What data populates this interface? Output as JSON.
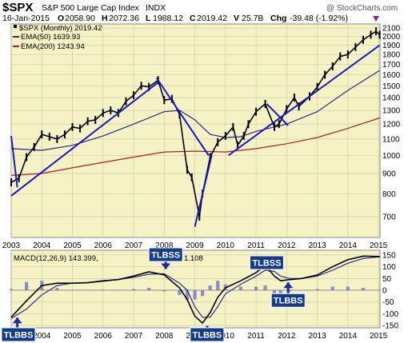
{
  "header": {
    "symbol": "$SPX",
    "name": "S&P 500 Large Cap Index",
    "exchange": "INDX",
    "source": "@ StockCharts.com",
    "date": "16-Jan-2015",
    "open_label": "O",
    "open": "2058.90",
    "high_label": "H",
    "high": "2072.36",
    "low_label": "L",
    "low": "1988.12",
    "close_label": "C",
    "close": "2019.42",
    "volume_label": "V",
    "volume": "25.7B",
    "chg_label": "Chg",
    "chg": "-39.48 (-1.92%)"
  },
  "legend": {
    "price": "$SPX (Monthly) 2019.42",
    "ema50": "EMA(50) 1639.93",
    "ema200": "EMA(200) 1243.94",
    "macd": "MACD(12,26,9) 143.399,",
    "macd_rest": "1.108"
  },
  "callouts": [
    "TLBSS",
    "TLBSS",
    "TLBBS",
    "TLBBS",
    "TLBBS"
  ],
  "colors": {
    "panel_bg": "#f5f2c4",
    "grid": "#c8c8a8",
    "price": "#000000",
    "ema50": "#2a2a8c",
    "ema200": "#b42020",
    "trendline": "#1818c8",
    "macd_line": "#000000",
    "signal_line": "#2a2a8c",
    "histogram": "#8a8ad2",
    "callout_bg": "#123a8e",
    "arrow": "#1c2aa8"
  },
  "chart_data": [
    {
      "type": "line",
      "title": "$SPX S&P 500 Large Cap Index INDX",
      "scale": "log",
      "ylim": [
        620,
        2150
      ],
      "xlim": [
        2003.0,
        2015.05
      ],
      "x_ticks": [
        "2003",
        "2004",
        "2005",
        "2006",
        "2007",
        "2008",
        "2009",
        "2010",
        "2011",
        "2012",
        "2013",
        "2014",
        "2015"
      ],
      "y_ticks": [
        700,
        800,
        900,
        1000,
        1100,
        1200,
        1300,
        1400,
        1500,
        1600,
        1700,
        1800,
        1900,
        2000,
        2100
      ],
      "series": [
        {
          "name": "$SPX (Monthly)",
          "points": [
            [
              2003.0,
              855
            ],
            [
              2003.25,
              875
            ],
            [
              2003.5,
              990
            ],
            [
              2003.75,
              1050
            ],
            [
              2004.0,
              1130
            ],
            [
              2004.25,
              1115
            ],
            [
              2004.5,
              1100
            ],
            [
              2004.75,
              1130
            ],
            [
              2005.0,
              1180
            ],
            [
              2005.25,
              1170
            ],
            [
              2005.5,
              1220
            ],
            [
              2005.75,
              1230
            ],
            [
              2006.0,
              1280
            ],
            [
              2006.25,
              1300
            ],
            [
              2006.5,
              1280
            ],
            [
              2006.75,
              1370
            ],
            [
              2007.0,
              1420
            ],
            [
              2007.25,
              1500
            ],
            [
              2007.5,
              1490
            ],
            [
              2007.8,
              1550
            ],
            [
              2008.0,
              1380
            ],
            [
              2008.25,
              1390
            ],
            [
              2008.5,
              1270
            ],
            [
              2008.75,
              920
            ],
            [
              2008.9,
              880
            ],
            [
              2009.15,
              700
            ],
            [
              2009.25,
              800
            ],
            [
              2009.5,
              990
            ],
            [
              2009.75,
              1080
            ],
            [
              2010.0,
              1120
            ],
            [
              2010.25,
              1180
            ],
            [
              2010.4,
              1060
            ],
            [
              2010.6,
              1120
            ],
            [
              2010.75,
              1200
            ],
            [
              2011.0,
              1290
            ],
            [
              2011.3,
              1350
            ],
            [
              2011.6,
              1180
            ],
            [
              2011.75,
              1200
            ],
            [
              2012.0,
              1310
            ],
            [
              2012.25,
              1400
            ],
            [
              2012.4,
              1330
            ],
            [
              2012.75,
              1410
            ],
            [
              2013.0,
              1490
            ],
            [
              2013.25,
              1600
            ],
            [
              2013.5,
              1680
            ],
            [
              2013.75,
              1780
            ],
            [
              2014.0,
              1800
            ],
            [
              2014.25,
              1880
            ],
            [
              2014.5,
              1960
            ],
            [
              2014.75,
              2020
            ],
            [
              2014.92,
              2060
            ],
            [
              2015.04,
              2019
            ]
          ]
        },
        {
          "name": "EMA(50)",
          "points": [
            [
              2003.0,
              1040
            ],
            [
              2004.0,
              1030
            ],
            [
              2005.0,
              1060
            ],
            [
              2006.0,
              1120
            ],
            [
              2007.0,
              1200
            ],
            [
              2008.0,
              1290
            ],
            [
              2008.5,
              1300
            ],
            [
              2009.0,
              1230
            ],
            [
              2009.5,
              1130
            ],
            [
              2010.0,
              1110
            ],
            [
              2010.5,
              1115
            ],
            [
              2011.0,
              1150
            ],
            [
              2012.0,
              1200
            ],
            [
              2013.0,
              1290
            ],
            [
              2014.0,
              1460
            ],
            [
              2015.04,
              1640
            ]
          ]
        },
        {
          "name": "EMA(200)",
          "points": [
            [
              2003.0,
              890
            ],
            [
              2004.0,
              900
            ],
            [
              2005.0,
              930
            ],
            [
              2006.0,
              960
            ],
            [
              2007.0,
              990
            ],
            [
              2008.0,
              1020
            ],
            [
              2009.0,
              1025
            ],
            [
              2010.0,
              1020
            ],
            [
              2011.0,
              1040
            ],
            [
              2012.0,
              1070
            ],
            [
              2013.0,
              1110
            ],
            [
              2014.0,
              1170
            ],
            [
              2015.04,
              1244
            ]
          ]
        }
      ],
      "trendlines": [
        {
          "from": [
            2003.0,
            1120
          ],
          "to": [
            2003.2,
            830
          ]
        },
        {
          "from": [
            2003.0,
            790
          ],
          "to": [
            2007.8,
            1530
          ]
        },
        {
          "from": [
            2007.75,
            1570
          ],
          "to": [
            2009.45,
            1000
          ]
        },
        {
          "from": [
            2009.0,
            660
          ],
          "to": [
            2009.55,
            1000
          ]
        },
        {
          "from": [
            2010.1,
            1000
          ],
          "to": [
            2015.04,
            1900
          ]
        },
        {
          "from": [
            2011.35,
            1350
          ],
          "to": [
            2012.05,
            1190
          ]
        }
      ]
    },
    {
      "type": "line",
      "title": "MACD(12,26,9) 143.399, 1.108",
      "ylim": [
        -160,
        170
      ],
      "xlim": [
        2003.0,
        2015.05
      ],
      "x_ticks": [
        "2003",
        "2004",
        "2005",
        "2006",
        "2007",
        "2008",
        "2009",
        "2010",
        "2011",
        "2012",
        "2013",
        "2014",
        "2015"
      ],
      "y_ticks": [
        150,
        100,
        50,
        0,
        -50,
        -100,
        -150
      ],
      "series": [
        {
          "name": "MACD",
          "points": [
            [
              2003.0,
              -115
            ],
            [
              2003.5,
              -45
            ],
            [
              2004.0,
              20
            ],
            [
              2004.5,
              30
            ],
            [
              2005.0,
              30
            ],
            [
              2005.5,
              32
            ],
            [
              2006.0,
              40
            ],
            [
              2006.5,
              45
            ],
            [
              2007.0,
              60
            ],
            [
              2007.5,
              78
            ],
            [
              2008.0,
              65
            ],
            [
              2008.5,
              10
            ],
            [
              2008.75,
              -40
            ],
            [
              2009.0,
              -110
            ],
            [
              2009.25,
              -140
            ],
            [
              2009.5,
              -95
            ],
            [
              2009.75,
              -30
            ],
            [
              2010.0,
              10
            ],
            [
              2010.5,
              40
            ],
            [
              2011.0,
              75
            ],
            [
              2011.3,
              105
            ],
            [
              2011.6,
              60
            ],
            [
              2011.8,
              40
            ],
            [
              2012.1,
              45
            ],
            [
              2012.5,
              50
            ],
            [
              2013.0,
              65
            ],
            [
              2013.5,
              100
            ],
            [
              2014.0,
              130
            ],
            [
              2014.5,
              145
            ],
            [
              2015.04,
              143
            ]
          ]
        },
        {
          "name": "Signal",
          "points": [
            [
              2003.0,
              -120
            ],
            [
              2003.5,
              -80
            ],
            [
              2004.0,
              -20
            ],
            [
              2004.5,
              20
            ],
            [
              2005.0,
              30
            ],
            [
              2005.5,
              32
            ],
            [
              2006.0,
              38
            ],
            [
              2006.5,
              45
            ],
            [
              2007.0,
              55
            ],
            [
              2007.5,
              68
            ],
            [
              2008.0,
              70
            ],
            [
              2008.5,
              30
            ],
            [
              2008.75,
              0
            ],
            [
              2009.0,
              -70
            ],
            [
              2009.25,
              -115
            ],
            [
              2009.5,
              -115
            ],
            [
              2009.75,
              -70
            ],
            [
              2010.0,
              -15
            ],
            [
              2010.5,
              25
            ],
            [
              2011.0,
              60
            ],
            [
              2011.3,
              85
            ],
            [
              2011.6,
              80
            ],
            [
              2011.8,
              60
            ],
            [
              2012.1,
              50
            ],
            [
              2012.5,
              50
            ],
            [
              2013.0,
              60
            ],
            [
              2013.5,
              85
            ],
            [
              2014.0,
              115
            ],
            [
              2014.5,
              135
            ],
            [
              2015.04,
              142
            ]
          ]
        }
      ],
      "histogram": [
        [
          2003.0,
          5
        ],
        [
          2003.5,
          35
        ],
        [
          2004.0,
          40
        ],
        [
          2004.5,
          10
        ],
        [
          2005.0,
          0
        ],
        [
          2005.5,
          0
        ],
        [
          2006.0,
          2
        ],
        [
          2006.5,
          0
        ],
        [
          2007.0,
          5
        ],
        [
          2007.5,
          10
        ],
        [
          2008.0,
          -5
        ],
        [
          2008.5,
          -20
        ],
        [
          2008.75,
          -40
        ],
        [
          2009.0,
          -40
        ],
        [
          2009.25,
          -25
        ],
        [
          2009.5,
          20
        ],
        [
          2009.75,
          40
        ],
        [
          2010.0,
          25
        ],
        [
          2010.5,
          15
        ],
        [
          2011.0,
          15
        ],
        [
          2011.3,
          20
        ],
        [
          2011.6,
          -20
        ],
        [
          2011.8,
          -20
        ],
        [
          2012.1,
          -5
        ],
        [
          2012.5,
          0
        ],
        [
          2013.0,
          5
        ],
        [
          2013.5,
          15
        ],
        [
          2014.0,
          15
        ],
        [
          2014.5,
          10
        ],
        [
          2015.04,
          1
        ]
      ],
      "annotations": [
        {
          "label": "TLBSS",
          "x": 2008.05,
          "value": 80
        },
        {
          "label": "TLBSS",
          "x": 2011.35,
          "value": 105
        },
        {
          "label": "TLBBS",
          "x": 2003.2,
          "value": -110
        },
        {
          "label": "TLBBS",
          "x": 2009.4,
          "value": -145
        },
        {
          "label": "TLBBS",
          "x": 2012.05,
          "value": 40
        }
      ]
    }
  ]
}
